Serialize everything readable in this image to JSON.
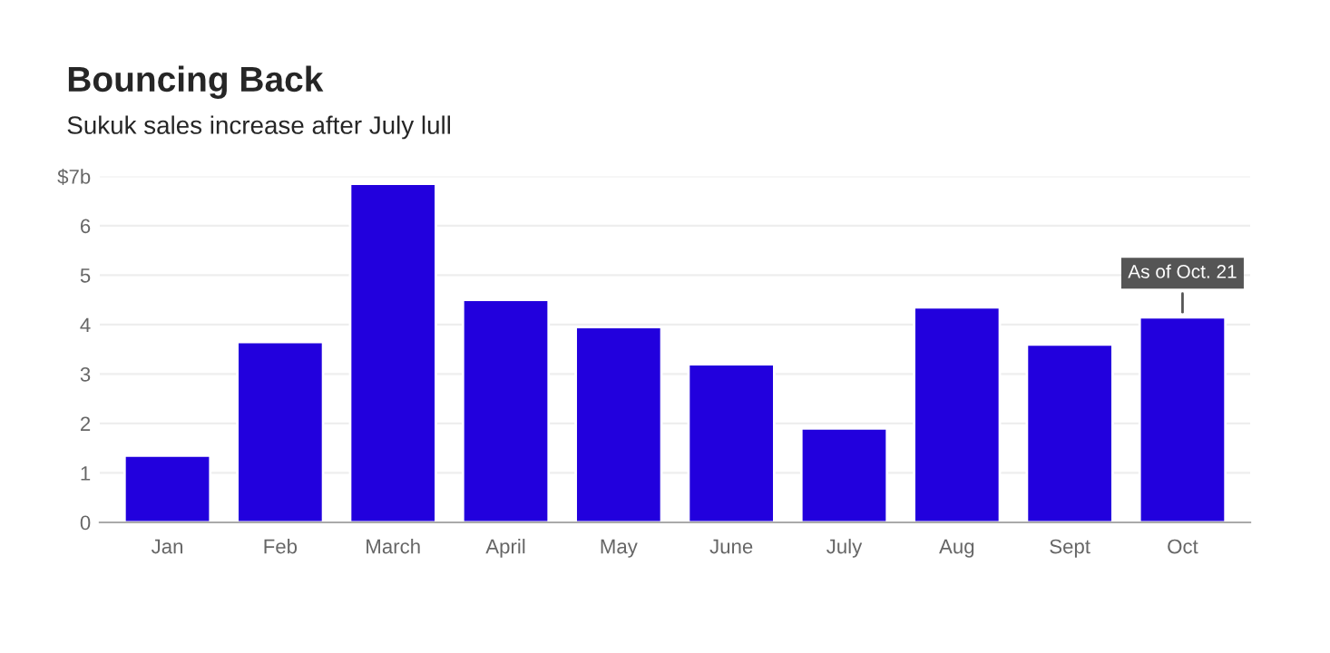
{
  "chart_data": {
    "type": "bar",
    "title": "Bouncing Back",
    "subtitle": "Sukuk sales increase after July lull",
    "categories": [
      "Jan",
      "Feb",
      "March",
      "April",
      "May",
      "June",
      "July",
      "Aug",
      "Sept",
      "Oct"
    ],
    "values": [
      1.35,
      3.65,
      6.85,
      4.5,
      3.95,
      3.2,
      1.9,
      4.35,
      3.6,
      4.15
    ],
    "color": "#2200dd",
    "ylim": [
      0,
      7
    ],
    "yticks": [
      0,
      1,
      2,
      3,
      4,
      5,
      6,
      {
        "value": 7,
        "label": "$7b"
      }
    ],
    "grid": "y",
    "annotations": [
      {
        "text": "As of Oct. 21",
        "x": "Oct",
        "y": 4.15
      }
    ]
  }
}
